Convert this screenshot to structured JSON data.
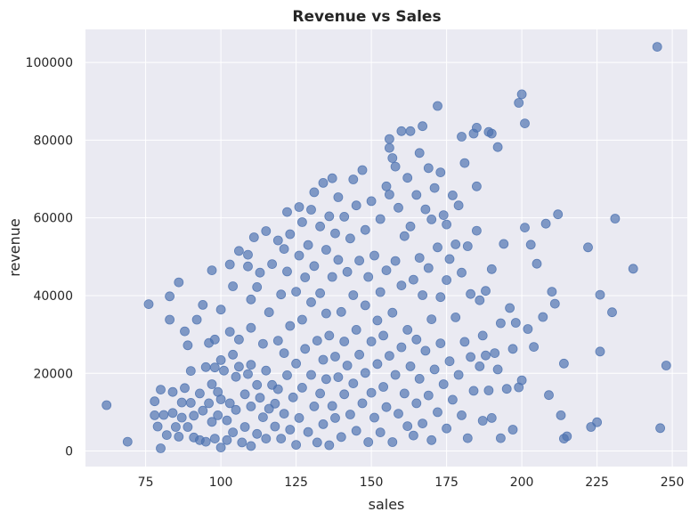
{
  "chart_data": {
    "type": "scatter",
    "title": "Revenue vs Sales",
    "xlabel": "sales",
    "ylabel": "revenue",
    "xlim": [
      55,
      255
    ],
    "ylim": [
      -4000,
      108500
    ],
    "x_ticks": [
      75,
      100,
      125,
      150,
      175,
      200,
      225,
      250
    ],
    "y_ticks": [
      0,
      20000,
      40000,
      60000,
      80000,
      100000
    ],
    "grid": true,
    "legend": "none",
    "colors": {
      "point": "#4c72b0",
      "plot_background": "#eaeaf2",
      "grid": "#ffffff"
    },
    "points": [
      [
        62,
        11800
      ],
      [
        69,
        2400
      ],
      [
        76,
        37800
      ],
      [
        78,
        9200
      ],
      [
        78,
        12800
      ],
      [
        79,
        6300
      ],
      [
        80,
        15800
      ],
      [
        80,
        700
      ],
      [
        81,
        9300
      ],
      [
        82,
        4100
      ],
      [
        83,
        39800
      ],
      [
        83,
        33800
      ],
      [
        84,
        15200
      ],
      [
        84,
        9800
      ],
      [
        85,
        6200
      ],
      [
        86,
        43400
      ],
      [
        86,
        3700
      ],
      [
        87,
        12500
      ],
      [
        87,
        8600
      ],
      [
        88,
        30800
      ],
      [
        88,
        16200
      ],
      [
        89,
        27200
      ],
      [
        89,
        6200
      ],
      [
        90,
        20600
      ],
      [
        90,
        12400
      ],
      [
        91,
        9100
      ],
      [
        91,
        3500
      ],
      [
        92,
        33800
      ],
      [
        93,
        14800
      ],
      [
        93,
        2800
      ],
      [
        94,
        37600
      ],
      [
        94,
        10400
      ],
      [
        95,
        21600
      ],
      [
        95,
        2400
      ],
      [
        96,
        27800
      ],
      [
        96,
        12300
      ],
      [
        97,
        46500
      ],
      [
        97,
        17200
      ],
      [
        97,
        7500
      ],
      [
        98,
        28700
      ],
      [
        98,
        21500
      ],
      [
        98,
        3200
      ],
      [
        99,
        15200
      ],
      [
        99,
        9200
      ],
      [
        100,
        36400
      ],
      [
        100,
        23400
      ],
      [
        100,
        13300
      ],
      [
        100,
        900
      ],
      [
        101,
        20700
      ],
      [
        102,
        2800
      ],
      [
        102,
        7900
      ],
      [
        103,
        48000
      ],
      [
        103,
        30700
      ],
      [
        103,
        12300
      ],
      [
        104,
        42400
      ],
      [
        104,
        24800
      ],
      [
        104,
        4800
      ],
      [
        105,
        19100
      ],
      [
        105,
        10600
      ],
      [
        106,
        51500
      ],
      [
        106,
        28700
      ],
      [
        106,
        21700
      ],
      [
        107,
        2200
      ],
      [
        108,
        14600
      ],
      [
        108,
        6200
      ],
      [
        109,
        47500
      ],
      [
        109,
        50500
      ],
      [
        109,
        19800
      ],
      [
        110,
        39000
      ],
      [
        110,
        31700
      ],
      [
        110,
        22200
      ],
      [
        110,
        11500
      ],
      [
        110,
        1300
      ],
      [
        111,
        55000
      ],
      [
        112,
        42200
      ],
      [
        112,
        17000
      ],
      [
        112,
        4400
      ],
      [
        113,
        13700
      ],
      [
        113,
        45900
      ],
      [
        114,
        27600
      ],
      [
        114,
        8700
      ],
      [
        115,
        56600
      ],
      [
        115,
        20700
      ],
      [
        115,
        3200
      ],
      [
        116,
        35700
      ],
      [
        116,
        10900
      ],
      [
        117,
        48100
      ],
      [
        117,
        17000
      ],
      [
        118,
        6300
      ],
      [
        118,
        12200
      ],
      [
        119,
        54200
      ],
      [
        119,
        28400
      ],
      [
        119,
        15900
      ],
      [
        120,
        3200
      ],
      [
        120,
        40300
      ],
      [
        121,
        52000
      ],
      [
        121,
        25200
      ],
      [
        121,
        9600
      ],
      [
        122,
        61500
      ],
      [
        122,
        46200
      ],
      [
        122,
        19500
      ],
      [
        123,
        55800
      ],
      [
        123,
        5500
      ],
      [
        123,
        32200
      ],
      [
        124,
        13800
      ],
      [
        125,
        41000
      ],
      [
        125,
        22500
      ],
      [
        125,
        1600
      ],
      [
        126,
        62800
      ],
      [
        126,
        50300
      ],
      [
        126,
        8500
      ],
      [
        127,
        58900
      ],
      [
        127,
        33800
      ],
      [
        127,
        16300
      ],
      [
        128,
        44700
      ],
      [
        128,
        26300
      ],
      [
        129,
        53000
      ],
      [
        129,
        4900
      ],
      [
        130,
        62100
      ],
      [
        130,
        38300
      ],
      [
        130,
        19600
      ],
      [
        131,
        66600
      ],
      [
        131,
        47600
      ],
      [
        131,
        11500
      ],
      [
        132,
        28400
      ],
      [
        132,
        2200
      ],
      [
        133,
        57800
      ],
      [
        133,
        40600
      ],
      [
        133,
        14800
      ],
      [
        134,
        69000
      ],
      [
        134,
        23500
      ],
      [
        134,
        6900
      ],
      [
        135,
        51800
      ],
      [
        135,
        35400
      ],
      [
        135,
        18500
      ],
      [
        136,
        60400
      ],
      [
        136,
        29700
      ],
      [
        136,
        1500
      ],
      [
        137,
        70200
      ],
      [
        137,
        44800
      ],
      [
        137,
        11600
      ],
      [
        138,
        56000
      ],
      [
        138,
        24300
      ],
      [
        138,
        8500
      ],
      [
        139,
        65300
      ],
      [
        139,
        49200
      ],
      [
        139,
        19000
      ],
      [
        140,
        35800
      ],
      [
        140,
        3600
      ],
      [
        141,
        60300
      ],
      [
        141,
        28200
      ],
      [
        141,
        14600
      ],
      [
        142,
        46100
      ],
      [
        142,
        22000
      ],
      [
        143,
        54700
      ],
      [
        143,
        9400
      ],
      [
        144,
        69900
      ],
      [
        144,
        40100
      ],
      [
        144,
        17400
      ],
      [
        145,
        63200
      ],
      [
        145,
        31200
      ],
      [
        145,
        5200
      ],
      [
        146,
        49000
      ],
      [
        146,
        24800
      ],
      [
        147,
        72300
      ],
      [
        147,
        12300
      ],
      [
        148,
        56900
      ],
      [
        148,
        37500
      ],
      [
        148,
        20100
      ],
      [
        149,
        44800
      ],
      [
        149,
        2300
      ],
      [
        150,
        64300
      ],
      [
        150,
        28200
      ],
      [
        150,
        15000
      ],
      [
        151,
        50300
      ],
      [
        151,
        8600
      ],
      [
        152,
        33600
      ],
      [
        152,
        22400
      ],
      [
        153,
        59700
      ],
      [
        153,
        40900
      ],
      [
        153,
        4800
      ],
      [
        154,
        29700
      ],
      [
        154,
        16500
      ],
      [
        155,
        68100
      ],
      [
        155,
        46500
      ],
      [
        155,
        11300
      ],
      [
        156,
        80300
      ],
      [
        156,
        78000
      ],
      [
        156,
        66000
      ],
      [
        156,
        24500
      ],
      [
        157,
        75400
      ],
      [
        157,
        35600
      ],
      [
        157,
        2300
      ],
      [
        158,
        73200
      ],
      [
        158,
        48900
      ],
      [
        158,
        19600
      ],
      [
        159,
        62600
      ],
      [
        159,
        9600
      ],
      [
        160,
        82300
      ],
      [
        160,
        42600
      ],
      [
        160,
        26700
      ],
      [
        161,
        55300
      ],
      [
        161,
        14800
      ],
      [
        162,
        70300
      ],
      [
        162,
        31200
      ],
      [
        162,
        6400
      ],
      [
        163,
        82300
      ],
      [
        163,
        57800
      ],
      [
        163,
        21800
      ],
      [
        164,
        44100
      ],
      [
        164,
        4000
      ],
      [
        165,
        65900
      ],
      [
        165,
        28700
      ],
      [
        165,
        12300
      ],
      [
        166,
        76700
      ],
      [
        166,
        49700
      ],
      [
        166,
        18600
      ],
      [
        167,
        83600
      ],
      [
        167,
        40100
      ],
      [
        167,
        7100
      ],
      [
        168,
        62200
      ],
      [
        168,
        25800
      ],
      [
        169,
        72800
      ],
      [
        169,
        47100
      ],
      [
        169,
        14300
      ],
      [
        170,
        59600
      ],
      [
        170,
        33900
      ],
      [
        170,
        2800
      ],
      [
        171,
        67700
      ],
      [
        171,
        21000
      ],
      [
        172,
        88800
      ],
      [
        172,
        52400
      ],
      [
        172,
        10000
      ],
      [
        173,
        71700
      ],
      [
        173,
        39600
      ],
      [
        173,
        27700
      ],
      [
        174,
        60700
      ],
      [
        174,
        17200
      ],
      [
        175,
        58300
      ],
      [
        175,
        44000
      ],
      [
        175,
        5800
      ],
      [
        176,
        49400
      ],
      [
        176,
        23100
      ],
      [
        177,
        65800
      ],
      [
        177,
        13200
      ],
      [
        178,
        53200
      ],
      [
        178,
        34400
      ],
      [
        179,
        63200
      ],
      [
        179,
        19600
      ],
      [
        180,
        80900
      ],
      [
        180,
        45900
      ],
      [
        180,
        9200
      ],
      [
        181,
        74100
      ],
      [
        181,
        28100
      ],
      [
        182,
        52700
      ],
      [
        182,
        3300
      ],
      [
        183,
        40400
      ],
      [
        183,
        24200
      ],
      [
        184,
        81700
      ],
      [
        184,
        15500
      ],
      [
        185,
        83200
      ],
      [
        185,
        68100
      ],
      [
        185,
        56700
      ],
      [
        186,
        38800
      ],
      [
        186,
        21800
      ],
      [
        187,
        29700
      ],
      [
        187,
        7800
      ],
      [
        188,
        41200
      ],
      [
        188,
        24600
      ],
      [
        189,
        82100
      ],
      [
        189,
        15600
      ],
      [
        190,
        81700
      ],
      [
        190,
        46800
      ],
      [
        190,
        8500
      ],
      [
        191,
        25200
      ],
      [
        192,
        78200
      ],
      [
        192,
        21000
      ],
      [
        193,
        32900
      ],
      [
        193,
        3300
      ],
      [
        194,
        53300
      ],
      [
        195,
        16000
      ],
      [
        196,
        36800
      ],
      [
        197,
        26300
      ],
      [
        197,
        5500
      ],
      [
        198,
        33000
      ],
      [
        199,
        89600
      ],
      [
        199,
        16400
      ],
      [
        200,
        91800
      ],
      [
        200,
        18200
      ],
      [
        201,
        84300
      ],
      [
        201,
        57500
      ],
      [
        202,
        31400
      ],
      [
        203,
        53100
      ],
      [
        204,
        26800
      ],
      [
        205,
        48200
      ],
      [
        207,
        34500
      ],
      [
        208,
        58500
      ],
      [
        209,
        14400
      ],
      [
        210,
        41000
      ],
      [
        211,
        37900
      ],
      [
        212,
        60900
      ],
      [
        213,
        9200
      ],
      [
        214,
        22500
      ],
      [
        214,
        3200
      ],
      [
        215,
        3800
      ],
      [
        222,
        52400
      ],
      [
        223,
        6200
      ],
      [
        225,
        7400
      ],
      [
        226,
        40200
      ],
      [
        226,
        25600
      ],
      [
        230,
        35700
      ],
      [
        231,
        59800
      ],
      [
        237,
        46900
      ],
      [
        245,
        104000
      ],
      [
        246,
        5900
      ],
      [
        248,
        22000
      ]
    ]
  }
}
